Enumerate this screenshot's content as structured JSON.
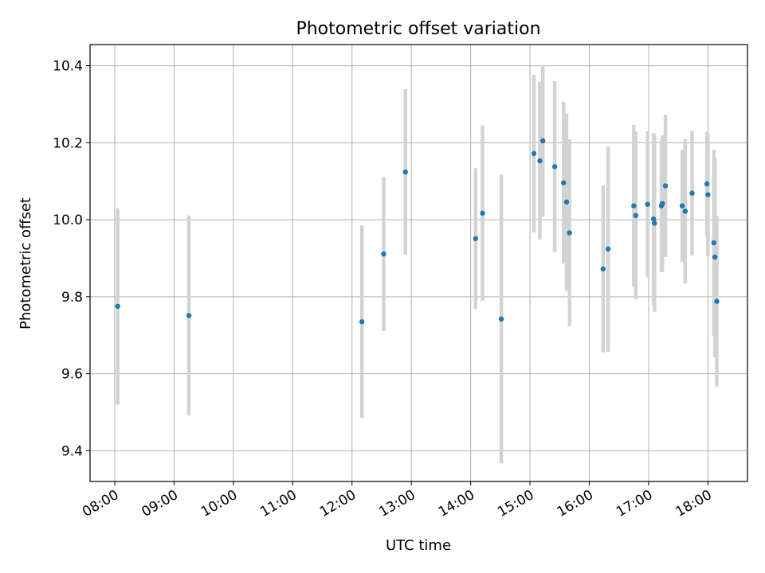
{
  "chart_data": {
    "type": "scatter",
    "title": "Photometric offset variation",
    "xlabel": "UTC time",
    "ylabel": "Photometric offset",
    "x_tick_labels": [
      "08:00",
      "09:00",
      "10:00",
      "11:00",
      "12:00",
      "13:00",
      "14:00",
      "15:00",
      "16:00",
      "17:00",
      "18:00"
    ],
    "y_tick_labels": [
      "9.4",
      "9.6",
      "9.8",
      "10.0",
      "10.2",
      "10.4"
    ],
    "xlim": [
      "07:35",
      "18:40"
    ],
    "ylim": [
      9.32,
      10.455
    ],
    "grid": true,
    "colors": {
      "marker": "#1f77b4",
      "errorbar": "#d3d3d3",
      "grid": "#b0b0b0"
    },
    "points": [
      {
        "t": "08:03",
        "y": 9.775,
        "err": 0.255
      },
      {
        "t": "09:15",
        "y": 9.751,
        "err": 0.26
      },
      {
        "t": "12:10",
        "y": 9.735,
        "err": 0.25
      },
      {
        "t": "12:32",
        "y": 9.911,
        "err": 0.2
      },
      {
        "t": "12:54",
        "y": 10.124,
        "err": 0.215
      },
      {
        "t": "14:05",
        "y": 9.951,
        "err": 0.183
      },
      {
        "t": "14:12",
        "y": 10.017,
        "err": 0.228
      },
      {
        "t": "14:31",
        "y": 9.742,
        "err": 0.375
      },
      {
        "t": "15:04",
        "y": 10.172,
        "err": 0.205
      },
      {
        "t": "15:10",
        "y": 10.153,
        "err": 0.205
      },
      {
        "t": "15:13",
        "y": 10.205,
        "err": 0.197
      },
      {
        "t": "15:25",
        "y": 10.138,
        "err": 0.222
      },
      {
        "t": "15:34",
        "y": 10.096,
        "err": 0.21
      },
      {
        "t": "15:37",
        "y": 10.046,
        "err": 0.23
      },
      {
        "t": "15:40",
        "y": 9.966,
        "err": 0.243
      },
      {
        "t": "16:14",
        "y": 9.872,
        "err": 0.217
      },
      {
        "t": "16:19",
        "y": 9.924,
        "err": 0.267
      },
      {
        "t": "16:45",
        "y": 10.036,
        "err": 0.21
      },
      {
        "t": "16:47",
        "y": 10.011,
        "err": 0.218
      },
      {
        "t": "16:59",
        "y": 10.04,
        "err": 0.19
      },
      {
        "t": "17:05",
        "y": 10.002,
        "err": 0.223
      },
      {
        "t": "17:06",
        "y": 9.991,
        "err": 0.23
      },
      {
        "t": "17:13",
        "y": 10.036,
        "err": 0.172
      },
      {
        "t": "17:14",
        "y": 10.042,
        "err": 0.177
      },
      {
        "t": "17:17",
        "y": 10.088,
        "err": 0.185
      },
      {
        "t": "17:34",
        "y": 10.036,
        "err": 0.146
      },
      {
        "t": "17:37",
        "y": 10.022,
        "err": 0.188
      },
      {
        "t": "17:44",
        "y": 10.069,
        "err": 0.162
      },
      {
        "t": "17:59",
        "y": 10.093,
        "err": 0.135
      },
      {
        "t": "18:00",
        "y": 10.065,
        "err": 0.16
      },
      {
        "t": "18:06",
        "y": 9.94,
        "err": 0.242
      },
      {
        "t": "18:07",
        "y": 9.903,
        "err": 0.26
      },
      {
        "t": "18:09",
        "y": 9.788,
        "err": 0.222
      }
    ]
  }
}
